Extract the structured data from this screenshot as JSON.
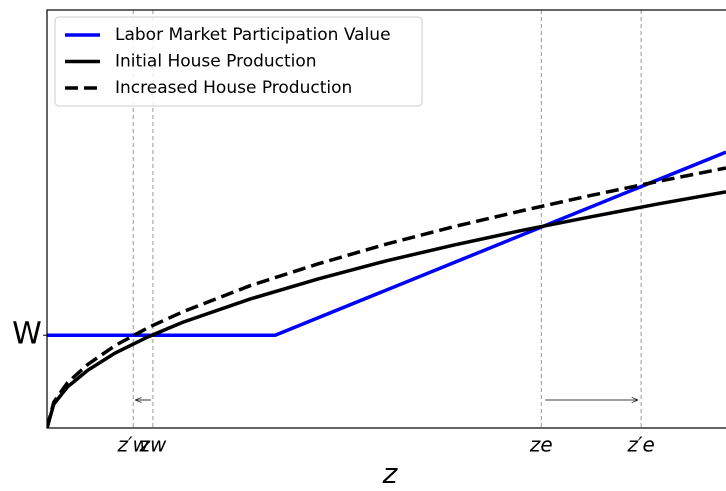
{
  "chart_data": {
    "type": "line",
    "xlabel": "z",
    "xlim": [
      0,
      1
    ],
    "ylim": [
      0,
      1
    ],
    "xticks": [
      {
        "value": 0.127,
        "label": "z′w"
      },
      {
        "value": 0.156,
        "label": "zw"
      },
      {
        "value": 0.728,
        "label": "ze"
      },
      {
        "value": 0.875,
        "label": "z′e"
      }
    ],
    "yticks": [
      {
        "value": 0.222,
        "label": "W"
      }
    ],
    "xgrid": true,
    "legend": "upper left",
    "series": [
      {
        "name": "Labor Market Participation Value",
        "color": "#0000ff",
        "dashed": false,
        "x": [
          0,
          0.336,
          1
        ],
        "values": [
          0.222,
          0.222,
          0.66
        ]
      },
      {
        "name": "Initial House Production",
        "color": "#000000",
        "dashed": false,
        "x": [
          0,
          0.01,
          0.03,
          0.06,
          0.1,
          0.15,
          0.2,
          0.3,
          0.4,
          0.5,
          0.6,
          0.7,
          0.8,
          0.9,
          1
        ],
        "values": [
          0,
          0.057,
          0.098,
          0.138,
          0.179,
          0.219,
          0.253,
          0.309,
          0.357,
          0.4,
          0.438,
          0.473,
          0.505,
          0.536,
          0.565
        ]
      },
      {
        "name": "Increased House Production",
        "color": "#000000",
        "dashed": true,
        "x": [
          0,
          0.01,
          0.03,
          0.06,
          0.1,
          0.15,
          0.2,
          0.3,
          0.4,
          0.5,
          0.6,
          0.7,
          0.8,
          0.9,
          1
        ],
        "values": [
          0,
          0.062,
          0.108,
          0.152,
          0.197,
          0.241,
          0.278,
          0.341,
          0.393,
          0.44,
          0.482,
          0.52,
          0.556,
          0.59,
          0.622
        ]
      }
    ]
  }
}
